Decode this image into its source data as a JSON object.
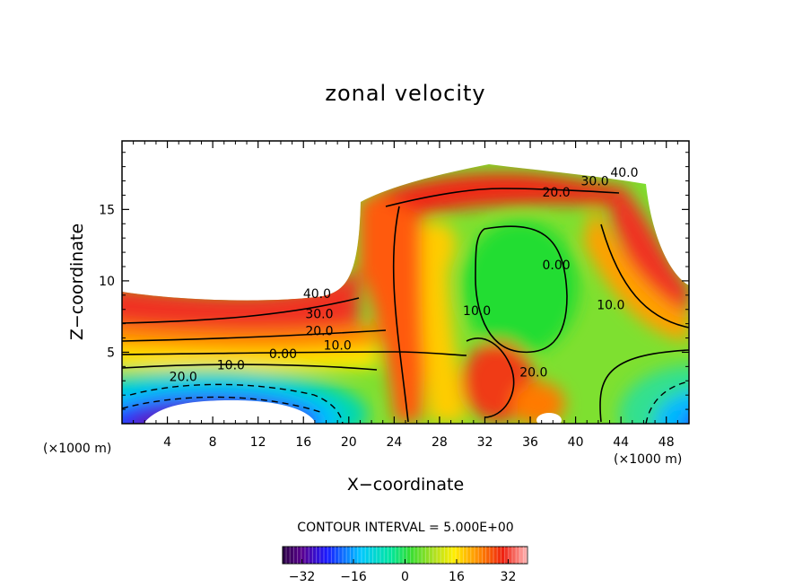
{
  "chart_data": {
    "type": "heatmap",
    "title": "zonal velocity",
    "xlabel": "X−coordinate",
    "ylabel": "Z−coordinate",
    "x_unit_left": "(×1000 m)",
    "x_unit_right": "(×1000 m)",
    "xlim": [
      0,
      50
    ],
    "ylim": [
      0,
      19.8
    ],
    "x_ticks": [
      4,
      8,
      12,
      16,
      20,
      24,
      28,
      32,
      36,
      40,
      44,
      48
    ],
    "x_tick_labels": [
      "4",
      "8",
      "12",
      "16",
      "20",
      "24",
      "28",
      "32",
      "36",
      "40",
      "44",
      "48"
    ],
    "y_ticks": [
      5,
      10,
      15
    ],
    "y_tick_labels": [
      "5",
      "10",
      "15"
    ],
    "contour_interval_text": "CONTOUR INTERVAL = 5.000E+00",
    "contour_labels": [
      {
        "text": "40.0",
        "x": 17.2,
        "y": 8.8
      },
      {
        "text": "30.0",
        "x": 17.4,
        "y": 7.4
      },
      {
        "text": "20.0",
        "x": 17.4,
        "y": 6.2
      },
      {
        "text": "10.0",
        "x": 19.0,
        "y": 5.2
      },
      {
        "text": "0.00",
        "x": 14.2,
        "y": 4.6
      },
      {
        "text": "10.0",
        "x": 9.6,
        "y": 3.8
      },
      {
        "text": "20.0",
        "x": 5.4,
        "y": 3.0
      },
      {
        "text": "40.0",
        "x": 44.3,
        "y": 17.3
      },
      {
        "text": "30.0",
        "x": 41.7,
        "y": 16.7
      },
      {
        "text": "20.0",
        "x": 38.3,
        "y": 15.9
      },
      {
        "text": "0.00",
        "x": 38.3,
        "y": 10.8
      },
      {
        "text": "10.0",
        "x": 43.1,
        "y": 8.0
      },
      {
        "text": "10.0",
        "x": 31.3,
        "y": 7.6
      },
      {
        "text": "20.0",
        "x": 36.3,
        "y": 3.3
      }
    ],
    "colorbar": {
      "range": [
        -38,
        38
      ],
      "ticks": [
        -32,
        -16,
        0,
        16,
        32
      ],
      "tick_labels": [
        "−32",
        "−16",
        "0",
        "16",
        "32"
      ]
    }
  }
}
